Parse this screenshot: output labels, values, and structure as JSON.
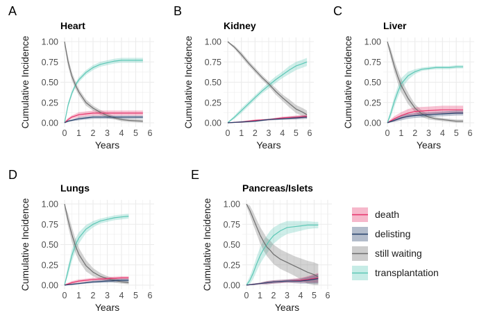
{
  "colors": {
    "death": "#e6336b",
    "delisting": "#24406b",
    "still_waiting": "#6e6e6e",
    "transplantation": "#5cc8b6",
    "grid": "#ebebeb"
  },
  "legend": [
    {
      "key": "death",
      "label": "death"
    },
    {
      "key": "delisting",
      "label": "delisting"
    },
    {
      "key": "still_waiting",
      "label": "still waiting"
    },
    {
      "key": "transplantation",
      "label": "transplantation"
    }
  ],
  "chart_data": [
    {
      "panel_letter": "A",
      "title": "Heart",
      "type": "line",
      "xlabel": "Years",
      "ylabel": "Cumulative Incidence",
      "xlim": [
        0,
        6
      ],
      "ylim": [
        0,
        1
      ],
      "xticks": [
        "0",
        "1",
        "2",
        "3",
        "4",
        "5",
        "6"
      ],
      "yticks": [
        "0.00",
        "0.25",
        "0.50",
        "0.75",
        "1.00"
      ],
      "series": [
        {
          "name": "still waiting",
          "x": [
            0,
            0.25,
            0.5,
            0.75,
            1,
            1.5,
            2,
            2.5,
            3,
            3.5,
            4,
            4.5,
            5.5
          ],
          "y": [
            1,
            0.75,
            0.58,
            0.47,
            0.38,
            0.25,
            0.18,
            0.13,
            0.09,
            0.06,
            0.04,
            0.03,
            0.02
          ],
          "band": [
            0.06,
            0.06,
            0.05,
            0.05,
            0.04,
            0.04,
            0.03,
            0.03,
            0.03,
            0.02,
            0.02,
            0.02,
            0.02
          ]
        },
        {
          "name": "transplantation",
          "x": [
            0,
            0.25,
            0.5,
            0.75,
            1,
            1.5,
            2,
            2.5,
            3,
            3.5,
            4,
            4.5,
            5.5
          ],
          "y": [
            0,
            0.22,
            0.36,
            0.46,
            0.53,
            0.62,
            0.68,
            0.72,
            0.74,
            0.76,
            0.77,
            0.77,
            0.77
          ],
          "band": [
            0.02,
            0.03,
            0.03,
            0.03,
            0.03,
            0.03,
            0.03,
            0.03,
            0.03,
            0.03,
            0.03,
            0.03,
            0.03
          ]
        },
        {
          "name": "death",
          "x": [
            0,
            0.25,
            0.5,
            1,
            1.5,
            2,
            3,
            4,
            5.5
          ],
          "y": [
            0,
            0.04,
            0.07,
            0.1,
            0.11,
            0.12,
            0.12,
            0.12,
            0.12
          ],
          "band": [
            0.01,
            0.02,
            0.02,
            0.03,
            0.03,
            0.03,
            0.03,
            0.03,
            0.03
          ]
        },
        {
          "name": "delisting",
          "x": [
            0,
            0.25,
            0.5,
            1,
            1.5,
            2,
            3,
            4,
            5.5
          ],
          "y": [
            0,
            0.02,
            0.03,
            0.05,
            0.06,
            0.07,
            0.07,
            0.07,
            0.07
          ],
          "band": [
            0.01,
            0.01,
            0.01,
            0.02,
            0.02,
            0.02,
            0.02,
            0.02,
            0.02
          ]
        }
      ]
    },
    {
      "panel_letter": "B",
      "title": "Kidney",
      "type": "line",
      "xlabel": "Years",
      "ylabel": "Cumulative Incidence",
      "xlim": [
        0,
        6
      ],
      "ylim": [
        0,
        1
      ],
      "xticks": [
        "0",
        "1",
        "2",
        "3",
        "4",
        "5",
        "6"
      ],
      "yticks": [
        "0.00",
        "0.25",
        "0.50",
        "0.75",
        "1.00"
      ],
      "series": [
        {
          "name": "still waiting",
          "x": [
            0,
            0.5,
            1,
            1.5,
            2,
            2.5,
            3,
            3.5,
            4,
            4.5,
            5,
            5.5,
            5.8
          ],
          "y": [
            1,
            0.93,
            0.84,
            0.74,
            0.65,
            0.56,
            0.48,
            0.39,
            0.31,
            0.24,
            0.17,
            0.13,
            0.1
          ],
          "band": [
            0.01,
            0.02,
            0.03,
            0.03,
            0.03,
            0.03,
            0.03,
            0.04,
            0.04,
            0.05,
            0.05,
            0.05,
            0.05
          ]
        },
        {
          "name": "transplantation",
          "x": [
            0,
            0.5,
            1,
            1.5,
            2,
            2.5,
            3,
            3.5,
            4,
            4.5,
            5,
            5.5,
            5.8
          ],
          "y": [
            0,
            0.07,
            0.15,
            0.23,
            0.31,
            0.39,
            0.46,
            0.53,
            0.59,
            0.65,
            0.7,
            0.73,
            0.75
          ],
          "band": [
            0.01,
            0.02,
            0.03,
            0.03,
            0.03,
            0.03,
            0.04,
            0.04,
            0.04,
            0.05,
            0.05,
            0.05,
            0.05
          ]
        },
        {
          "name": "death",
          "x": [
            0,
            1,
            2,
            3,
            4,
            5,
            5.8
          ],
          "y": [
            0,
            0.01,
            0.03,
            0.04,
            0.06,
            0.07,
            0.08
          ],
          "band": [
            0.005,
            0.01,
            0.01,
            0.01,
            0.015,
            0.02,
            0.02
          ]
        },
        {
          "name": "delisting",
          "x": [
            0,
            1,
            2,
            3,
            4,
            5,
            5.8
          ],
          "y": [
            0,
            0.01,
            0.02,
            0.04,
            0.05,
            0.06,
            0.07
          ],
          "band": [
            0.005,
            0.01,
            0.01,
            0.01,
            0.015,
            0.02,
            0.02
          ]
        }
      ]
    },
    {
      "panel_letter": "C",
      "title": "Liver",
      "type": "line",
      "xlabel": "Years",
      "ylabel": "Cumulative Incidence",
      "xlim": [
        0,
        6
      ],
      "ylim": [
        0,
        1
      ],
      "xticks": [
        "0",
        "1",
        "2",
        "3",
        "4",
        "5",
        "6"
      ],
      "yticks": [
        "0.00",
        "0.25",
        "0.50",
        "0.75",
        "1.00"
      ],
      "series": [
        {
          "name": "still waiting",
          "x": [
            0,
            0.25,
            0.5,
            0.75,
            1,
            1.5,
            2,
            2.5,
            3,
            3.5,
            4,
            4.5,
            5,
            5.5
          ],
          "y": [
            1,
            0.85,
            0.7,
            0.57,
            0.46,
            0.3,
            0.18,
            0.11,
            0.07,
            0.05,
            0.04,
            0.03,
            0.02,
            0.02
          ],
          "band": [
            0.04,
            0.06,
            0.07,
            0.08,
            0.08,
            0.07,
            0.05,
            0.04,
            0.03,
            0.02,
            0.02,
            0.02,
            0.02,
            0.02
          ]
        },
        {
          "name": "transplantation",
          "x": [
            0,
            0.25,
            0.5,
            0.75,
            1,
            1.5,
            2,
            2.5,
            3,
            3.5,
            4,
            4.5,
            5,
            5.5
          ],
          "y": [
            0,
            0.12,
            0.26,
            0.38,
            0.48,
            0.58,
            0.63,
            0.66,
            0.67,
            0.68,
            0.68,
            0.68,
            0.69,
            0.69
          ],
          "band": [
            0.02,
            0.05,
            0.06,
            0.07,
            0.07,
            0.05,
            0.03,
            0.02,
            0.02,
            0.02,
            0.02,
            0.02,
            0.02,
            0.02
          ]
        },
        {
          "name": "death",
          "x": [
            0,
            0.5,
            1,
            1.5,
            2,
            3,
            4,
            5,
            5.5
          ],
          "y": [
            0,
            0.05,
            0.09,
            0.12,
            0.14,
            0.15,
            0.16,
            0.16,
            0.16
          ],
          "band": [
            0.01,
            0.03,
            0.04,
            0.05,
            0.05,
            0.05,
            0.05,
            0.05,
            0.05
          ]
        },
        {
          "name": "delisting",
          "x": [
            0,
            0.5,
            1,
            1.5,
            2,
            3,
            4,
            5,
            5.5
          ],
          "y": [
            0,
            0.03,
            0.06,
            0.08,
            0.09,
            0.1,
            0.11,
            0.12,
            0.12
          ],
          "band": [
            0.01,
            0.02,
            0.03,
            0.03,
            0.03,
            0.03,
            0.03,
            0.03,
            0.03
          ]
        }
      ]
    },
    {
      "panel_letter": "D",
      "title": "Lungs",
      "type": "line",
      "xlabel": "Years",
      "ylabel": "Cumulative Incidence",
      "xlim": [
        0,
        6
      ],
      "ylim": [
        0,
        1
      ],
      "xticks": [
        "0",
        "1",
        "2",
        "3",
        "4",
        "5",
        "6"
      ],
      "yticks": [
        "0.00",
        "0.25",
        "0.50",
        "0.75",
        "1.00"
      ],
      "series": [
        {
          "name": "still waiting",
          "x": [
            0,
            0.25,
            0.5,
            0.75,
            1,
            1.5,
            2,
            2.5,
            3,
            3.5,
            4,
            4.5
          ],
          "y": [
            1,
            0.8,
            0.63,
            0.49,
            0.38,
            0.24,
            0.16,
            0.11,
            0.08,
            0.06,
            0.04,
            0.03
          ],
          "band": [
            0.06,
            0.08,
            0.09,
            0.09,
            0.08,
            0.07,
            0.05,
            0.04,
            0.03,
            0.03,
            0.02,
            0.02
          ]
        },
        {
          "name": "transplantation",
          "x": [
            0,
            0.25,
            0.5,
            0.75,
            1,
            1.5,
            2,
            2.5,
            3,
            3.5,
            4,
            4.5
          ],
          "y": [
            0,
            0.18,
            0.36,
            0.49,
            0.58,
            0.69,
            0.75,
            0.79,
            0.81,
            0.83,
            0.84,
            0.85
          ],
          "band": [
            0.03,
            0.06,
            0.07,
            0.08,
            0.07,
            0.05,
            0.04,
            0.03,
            0.03,
            0.03,
            0.03,
            0.03
          ]
        },
        {
          "name": "death",
          "x": [
            0,
            0.5,
            1,
            1.5,
            2,
            3,
            4,
            4.5
          ],
          "y": [
            0,
            0.03,
            0.05,
            0.06,
            0.07,
            0.08,
            0.09,
            0.09
          ],
          "band": [
            0.01,
            0.02,
            0.02,
            0.02,
            0.02,
            0.02,
            0.02,
            0.02
          ]
        },
        {
          "name": "delisting",
          "x": [
            0,
            0.5,
            1,
            1.5,
            2,
            3,
            4,
            4.5
          ],
          "y": [
            0,
            0.01,
            0.02,
            0.03,
            0.04,
            0.05,
            0.06,
            0.06
          ],
          "band": [
            0.005,
            0.01,
            0.01,
            0.01,
            0.015,
            0.02,
            0.02,
            0.02
          ]
        }
      ]
    },
    {
      "panel_letter": "E",
      "title": "Pancreas/Islets",
      "type": "line",
      "xlabel": "Years",
      "ylabel": "Cumulative Incidence",
      "xlim": [
        0,
        6
      ],
      "ylim": [
        0,
        1
      ],
      "xticks": [
        "0",
        "1",
        "2",
        "3",
        "4",
        "5",
        "6"
      ],
      "yticks": [
        "0.00",
        "0.25",
        "0.50",
        "0.75",
        "1.00"
      ],
      "series": [
        {
          "name": "still waiting",
          "x": [
            0,
            0.25,
            0.5,
            0.75,
            1,
            1.25,
            1.5,
            1.75,
            2,
            2.5,
            3,
            3.5,
            4,
            4.5,
            5,
            5.3
          ],
          "y": [
            1,
            0.92,
            0.82,
            0.72,
            0.62,
            0.54,
            0.47,
            0.43,
            0.38,
            0.32,
            0.28,
            0.24,
            0.2,
            0.16,
            0.13,
            0.1
          ],
          "band": [
            0.03,
            0.06,
            0.08,
            0.09,
            0.1,
            0.11,
            0.11,
            0.12,
            0.12,
            0.12,
            0.12,
            0.12,
            0.13,
            0.14,
            0.15,
            0.16
          ]
        },
        {
          "name": "transplantation",
          "x": [
            0,
            0.25,
            0.5,
            0.75,
            1,
            1.25,
            1.5,
            1.75,
            2,
            2.5,
            3,
            3.5,
            4,
            4.5,
            5,
            5.3
          ],
          "y": [
            0,
            0.06,
            0.15,
            0.26,
            0.36,
            0.44,
            0.5,
            0.56,
            0.61,
            0.67,
            0.71,
            0.72,
            0.73,
            0.74,
            0.74,
            0.74
          ],
          "band": [
            0.02,
            0.05,
            0.07,
            0.09,
            0.1,
            0.11,
            0.11,
            0.11,
            0.1,
            0.09,
            0.08,
            0.07,
            0.06,
            0.05,
            0.04,
            0.04
          ]
        },
        {
          "name": "death",
          "x": [
            0,
            0.5,
            1,
            1.5,
            2,
            3,
            4,
            4.5,
            5.3
          ],
          "y": [
            0,
            0.01,
            0.02,
            0.03,
            0.04,
            0.05,
            0.06,
            0.07,
            0.09
          ],
          "band": [
            0.005,
            0.01,
            0.01,
            0.02,
            0.02,
            0.02,
            0.03,
            0.04,
            0.06
          ]
        },
        {
          "name": "delisting",
          "x": [
            0,
            0.5,
            1,
            1.5,
            2,
            3,
            4,
            4.5,
            5.3
          ],
          "y": [
            0,
            0.01,
            0.02,
            0.03,
            0.04,
            0.05,
            0.05,
            0.06,
            0.08
          ],
          "band": [
            0.005,
            0.01,
            0.01,
            0.02,
            0.02,
            0.02,
            0.03,
            0.04,
            0.06
          ]
        }
      ]
    }
  ]
}
